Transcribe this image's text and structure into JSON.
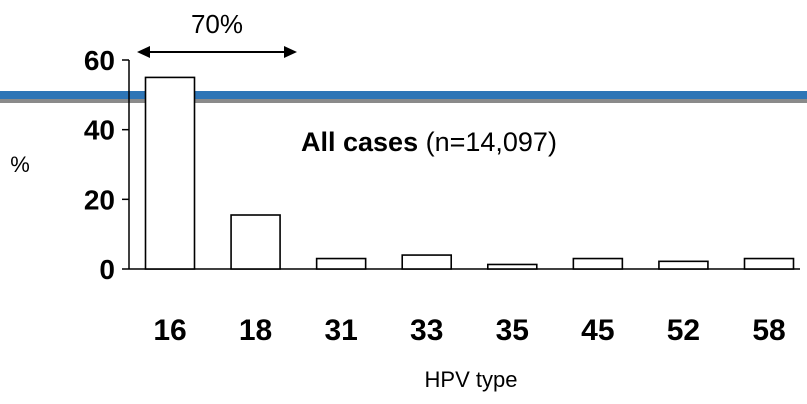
{
  "chart_data": {
    "type": "bar",
    "categories": [
      "16",
      "18",
      "31",
      "33",
      "35",
      "45",
      "52",
      "58"
    ],
    "values": [
      55,
      15.5,
      3,
      4,
      1.3,
      3,
      2.2,
      3
    ],
    "title": "",
    "annotation": {
      "bold": "All cases",
      "normal": " (n=14,097)"
    },
    "span_label": "70%",
    "xlabel": "HPV type",
    "ylabel": "%",
    "ylim": [
      0,
      60
    ],
    "yticks": [
      0,
      20,
      40,
      60
    ],
    "grid": false,
    "colors": {
      "bar_fill": "#ffffff",
      "bar_stroke": "#000000",
      "band_line": "#2e75b6",
      "band_shadow": "#8a8a8a",
      "axis": "#000000",
      "text": "#000000"
    }
  }
}
